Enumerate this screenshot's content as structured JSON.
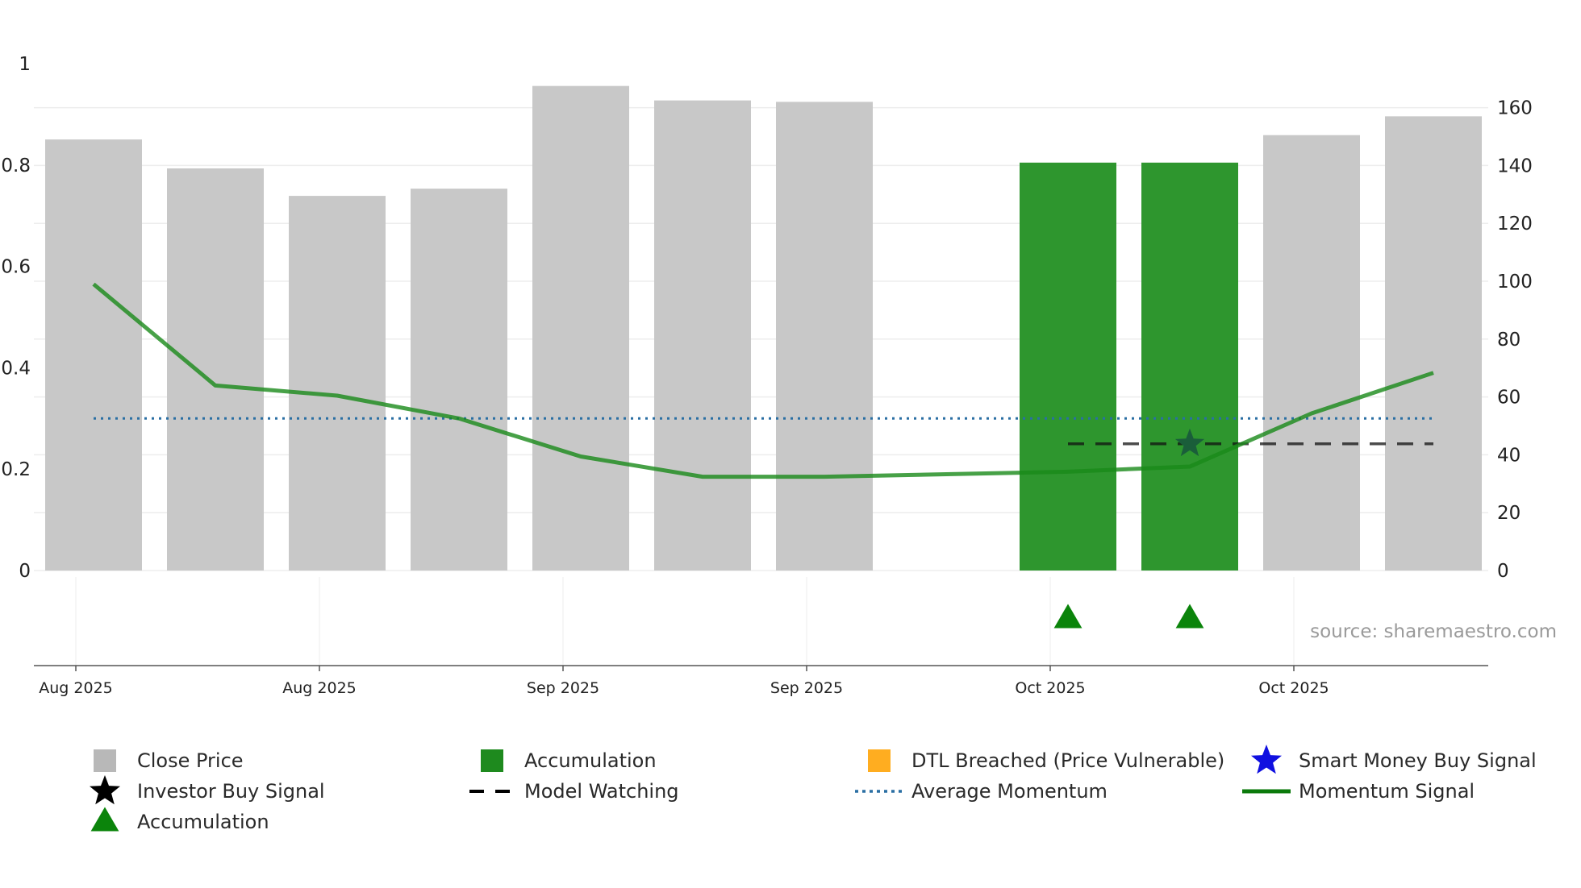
{
  "chart_data": {
    "type": "bar",
    "source_text": "source: sharemaestro.com",
    "x_tick_labels": [
      "Aug 2025",
      "Aug 2025",
      "Sep 2025",
      "Sep 2025",
      "Oct 2025",
      "Oct 2025"
    ],
    "left_axis": {
      "range": [
        0,
        1
      ],
      "ticks": [
        "0",
        "0.2",
        "0.4",
        "0.6",
        "0.8",
        "1"
      ]
    },
    "right_axis": {
      "range": [
        0,
        180
      ],
      "ticks": [
        "0",
        "20",
        "40",
        "60",
        "80",
        "100",
        "120",
        "140",
        "160"
      ]
    },
    "bars": [
      {
        "index": 0,
        "value": 149,
        "kind": "close"
      },
      {
        "index": 1,
        "value": 139,
        "kind": "close"
      },
      {
        "index": 2,
        "value": 129.5,
        "kind": "close"
      },
      {
        "index": 3,
        "value": 132,
        "kind": "close"
      },
      {
        "index": 4,
        "value": 167.5,
        "kind": "close"
      },
      {
        "index": 5,
        "value": 162.5,
        "kind": "close"
      },
      {
        "index": 6,
        "value": 162,
        "kind": "close"
      },
      {
        "index": 8,
        "value": 141,
        "kind": "accumulation"
      },
      {
        "index": 9,
        "value": 141,
        "kind": "accumulation"
      },
      {
        "index": 10,
        "value": 150.5,
        "kind": "close"
      },
      {
        "index": 11,
        "value": 157,
        "kind": "close"
      }
    ],
    "momentum": [
      {
        "index": 0,
        "value": 0.565
      },
      {
        "index": 1,
        "value": 0.365
      },
      {
        "index": 2,
        "value": 0.345
      },
      {
        "index": 3,
        "value": 0.3
      },
      {
        "index": 4,
        "value": 0.225
      },
      {
        "index": 5,
        "value": 0.185
      },
      {
        "index": 6,
        "value": 0.185
      },
      {
        "index": 7,
        "value": 0.19
      },
      {
        "index": 8,
        "value": 0.195
      },
      {
        "index": 9,
        "value": 0.205
      },
      {
        "index": 10,
        "value": 0.31
      },
      {
        "index": 11,
        "value": 0.39
      }
    ],
    "average_momentum": 0.3,
    "model_watching": {
      "from_index": 8,
      "to_index": 11,
      "value": 0.25
    },
    "investor_buy_signal": {
      "index": 9,
      "value": 0.25
    },
    "accumulation_markers": [
      8,
      9
    ],
    "colors": {
      "close": "#c8c8c8",
      "accumulation": "#2e962e",
      "momentum": "#198a19",
      "average": "#2a6fa3",
      "watching": "#111111",
      "marker": "#0b840b",
      "star": "#1a5e3a",
      "dtl": "#ffad20",
      "smart_money": "#1010e0"
    },
    "legend": [
      {
        "label": "Close Price",
        "symbol": "square",
        "color": "#b8b8b8"
      },
      {
        "label": "Accumulation",
        "symbol": "square",
        "color": "#1e8a1e"
      },
      {
        "label": "DTL Breached (Price Vulnerable)",
        "symbol": "square",
        "color": "#ffad20"
      },
      {
        "label": "Smart Money Buy Signal",
        "symbol": "star",
        "color": "#1010e0"
      },
      {
        "label": "Investor Buy Signal",
        "symbol": "star",
        "color": "#000000"
      },
      {
        "label": "Model Watching",
        "symbol": "dash",
        "color": "#000000"
      },
      {
        "label": "Average Momentum",
        "symbol": "dot",
        "color": "#2a6fa3"
      },
      {
        "label": "Momentum Signal",
        "symbol": "line",
        "color": "#0b7a0b"
      },
      {
        "label": "Accumulation",
        "symbol": "triangle",
        "color": "#0b840b"
      }
    ]
  }
}
